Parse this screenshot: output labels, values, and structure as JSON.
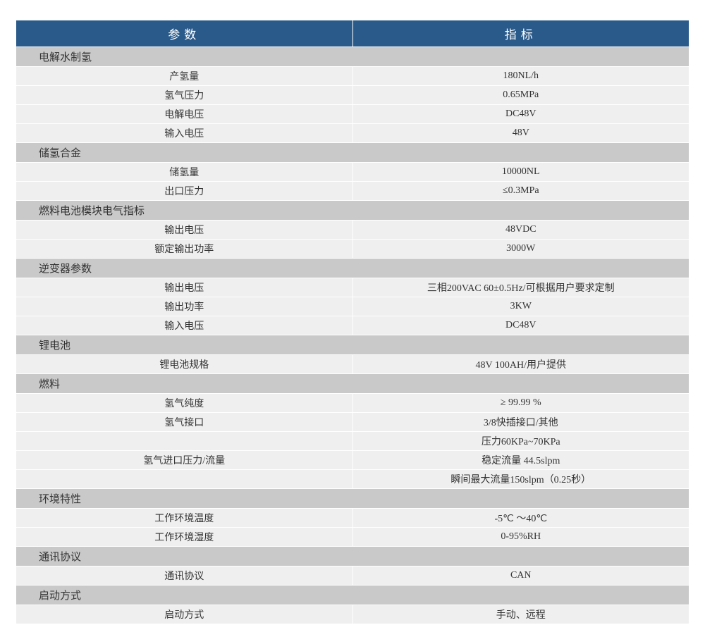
{
  "header": {
    "param": "参数",
    "value": "指标"
  },
  "colors": {
    "header_bg": "#2a5a8a",
    "header_fg": "#ffffff",
    "section_bg": "#c9c9c9",
    "row_bg": "#efefef",
    "border": "#ffffff",
    "text": "#333333"
  },
  "fontsize": {
    "header": 17,
    "section": 15,
    "cell": 14
  },
  "columns": [
    "参数",
    "指标"
  ],
  "col_widths": [
    "50%",
    "50%"
  ],
  "sections": [
    {
      "title": "电解水制氢",
      "rows": [
        {
          "param": "产氢量",
          "value": "180NL/h"
        },
        {
          "param": "氢气压力",
          "value": "0.65MPa"
        },
        {
          "param": "电解电压",
          "value": "DC48V"
        },
        {
          "param": "输入电压",
          "value": "48V"
        }
      ]
    },
    {
      "title": "储氢合金",
      "rows": [
        {
          "param": "储氢量",
          "value": "10000NL"
        },
        {
          "param": "出口压力",
          "value": "≤0.3MPa"
        }
      ]
    },
    {
      "title": "燃料电池模块电气指标",
      "rows": [
        {
          "param": "输出电压",
          "value": "48VDC"
        },
        {
          "param": "额定输出功率",
          "value": "3000W"
        }
      ]
    },
    {
      "title": "逆变器参数",
      "rows": [
        {
          "param": "输出电压",
          "value": "三相200VAC 60±0.5Hz/可根据用户要求定制"
        },
        {
          "param": "输出功率",
          "value": "3KW"
        },
        {
          "param": "输入电压",
          "value": "DC48V"
        }
      ]
    },
    {
      "title": "锂电池",
      "rows": [
        {
          "param": "锂电池规格",
          "value": "48V 100AH/用户提供"
        }
      ]
    },
    {
      "title": "燃料",
      "rows": [
        {
          "param": "氢气纯度",
          "value": "≥ 99.99 %"
        },
        {
          "param": "氢气接口",
          "value": "3/8快插接口/其他"
        },
        {
          "param": "",
          "value": "压力60KPa~70KPa"
        },
        {
          "param": "氢气进口压力/流量",
          "value": "稳定流量 44.5slpm"
        },
        {
          "param": "",
          "value": "瞬间最大流量150slpm（0.25秒）"
        }
      ]
    },
    {
      "title": "环境特性",
      "rows": [
        {
          "param": "工作环境温度",
          "value": "-5℃ ～40℃"
        },
        {
          "param": "工作环境湿度",
          "value": "0-95%RH"
        }
      ]
    },
    {
      "title": "通讯协议",
      "rows": [
        {
          "param": "通讯协议",
          "value": "CAN"
        }
      ]
    },
    {
      "title": "启动方式",
      "rows": [
        {
          "param": "启动方式",
          "value": "手动、远程"
        }
      ]
    }
  ]
}
